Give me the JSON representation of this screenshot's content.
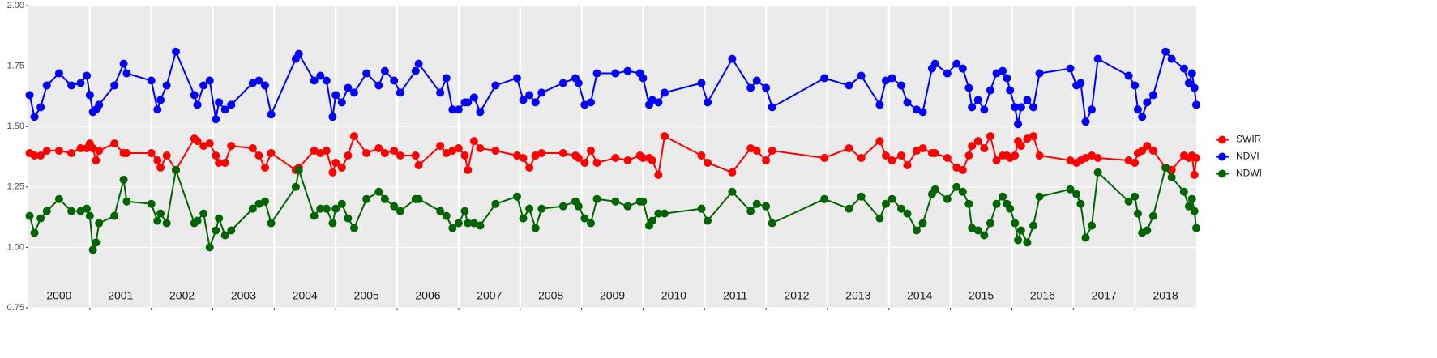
{
  "chart_data": {
    "type": "line",
    "x": [
      2000.02,
      2000.1,
      2000.2,
      2000.3,
      2000.5,
      2000.7,
      2000.85,
      2000.95,
      2001.0,
      2001.05,
      2001.1,
      2001.15,
      2001.4,
      2001.55,
      2001.6,
      2002.0,
      2002.1,
      2002.15,
      2002.25,
      2002.4,
      2002.7,
      2002.75,
      2002.85,
      2002.95,
      2003.05,
      2003.1,
      2003.2,
      2003.3,
      2003.65,
      2003.75,
      2003.85,
      2003.95,
      2004.35,
      2004.4,
      2004.65,
      2004.75,
      2004.85,
      2004.95,
      2005.0,
      2005.1,
      2005.2,
      2005.3,
      2005.5,
      2005.7,
      2005.8,
      2005.95,
      2006.05,
      2006.3,
      2006.35,
      2006.7,
      2006.8,
      2006.9,
      2007.0,
      2007.1,
      2007.15,
      2007.25,
      2007.35,
      2007.6,
      2007.95,
      2008.05,
      2008.15,
      2008.25,
      2008.35,
      2008.7,
      2008.9,
      2008.95,
      2009.05,
      2009.15,
      2009.25,
      2009.55,
      2009.75,
      2009.95,
      2010.0,
      2010.1,
      2010.15,
      2010.25,
      2010.35,
      2010.95,
      2011.05,
      2011.45,
      2011.75,
      2011.85,
      2012.0,
      2012.1,
      2012.95,
      2013.35,
      2013.55,
      2013.85,
      2013.95,
      2014.05,
      2014.2,
      2014.3,
      2014.45,
      2014.55,
      2014.7,
      2014.75,
      2014.95,
      2015.1,
      2015.2,
      2015.3,
      2015.35,
      2015.45,
      2015.55,
      2015.65,
      2015.75,
      2015.85,
      2015.92,
      2015.97,
      2016.05,
      2016.1,
      2016.15,
      2016.25,
      2016.35,
      2016.45,
      2016.95,
      2017.05,
      2017.12,
      2017.2,
      2017.3,
      2017.4,
      2017.9,
      2018.0,
      2018.05,
      2018.12,
      2018.2,
      2018.3,
      2018.5,
      2018.6,
      2018.8,
      2018.88,
      2018.93,
      2018.97,
      2019.0
    ],
    "series": [
      {
        "name": "SWIR",
        "color": "#ff0000",
        "values": [
          1.39,
          1.38,
          1.38,
          1.4,
          1.4,
          1.39,
          1.41,
          1.41,
          1.43,
          1.41,
          1.36,
          1.4,
          1.43,
          1.39,
          1.39,
          1.39,
          1.36,
          1.33,
          1.38,
          1.32,
          1.45,
          1.44,
          1.42,
          1.43,
          1.38,
          1.35,
          1.35,
          1.42,
          1.41,
          1.38,
          1.33,
          1.39,
          1.32,
          1.33,
          1.4,
          1.39,
          1.4,
          1.31,
          1.35,
          1.33,
          1.38,
          1.46,
          1.39,
          1.41,
          1.39,
          1.4,
          1.38,
          1.38,
          1.34,
          1.42,
          1.39,
          1.4,
          1.41,
          1.38,
          1.32,
          1.44,
          1.41,
          1.4,
          1.38,
          1.37,
          1.33,
          1.38,
          1.39,
          1.39,
          1.38,
          1.37,
          1.35,
          1.4,
          1.35,
          1.37,
          1.36,
          1.38,
          1.37,
          1.37,
          1.36,
          1.3,
          1.46,
          1.38,
          1.35,
          1.31,
          1.41,
          1.4,
          1.36,
          1.4,
          1.37,
          1.41,
          1.37,
          1.44,
          1.38,
          1.36,
          1.38,
          1.34,
          1.4,
          1.41,
          1.39,
          1.39,
          1.37,
          1.33,
          1.32,
          1.38,
          1.42,
          1.44,
          1.41,
          1.46,
          1.36,
          1.38,
          1.38,
          1.37,
          1.38,
          1.44,
          1.42,
          1.45,
          1.46,
          1.38,
          1.36,
          1.35,
          1.36,
          1.37,
          1.38,
          1.37,
          1.36,
          1.35,
          1.39,
          1.4,
          1.42,
          1.4,
          1.33,
          1.32,
          1.38,
          1.37,
          1.38,
          1.3,
          1.37
        ]
      },
      {
        "name": "NDVI",
        "color": "#0000ff",
        "values": [
          1.63,
          1.54,
          1.58,
          1.67,
          1.72,
          1.67,
          1.68,
          1.71,
          1.63,
          1.56,
          1.57,
          1.59,
          1.67,
          1.76,
          1.72,
          1.69,
          1.57,
          1.61,
          1.67,
          1.81,
          1.63,
          1.59,
          1.67,
          1.69,
          1.53,
          1.6,
          1.57,
          1.59,
          1.68,
          1.69,
          1.67,
          1.55,
          1.78,
          1.8,
          1.69,
          1.71,
          1.69,
          1.54,
          1.63,
          1.6,
          1.66,
          1.64,
          1.72,
          1.67,
          1.73,
          1.69,
          1.64,
          1.73,
          1.76,
          1.64,
          1.7,
          1.57,
          1.57,
          1.6,
          1.6,
          1.62,
          1.56,
          1.67,
          1.7,
          1.61,
          1.63,
          1.6,
          1.64,
          1.68,
          1.7,
          1.68,
          1.59,
          1.6,
          1.72,
          1.72,
          1.73,
          1.72,
          1.7,
          1.59,
          1.61,
          1.6,
          1.64,
          1.68,
          1.6,
          1.78,
          1.66,
          1.69,
          1.66,
          1.58,
          1.7,
          1.67,
          1.71,
          1.59,
          1.69,
          1.7,
          1.67,
          1.6,
          1.57,
          1.56,
          1.74,
          1.76,
          1.72,
          1.76,
          1.74,
          1.66,
          1.58,
          1.61,
          1.57,
          1.65,
          1.72,
          1.73,
          1.7,
          1.65,
          1.58,
          1.51,
          1.58,
          1.61,
          1.58,
          1.72,
          1.74,
          1.67,
          1.68,
          1.52,
          1.57,
          1.78,
          1.71,
          1.67,
          1.57,
          1.54,
          1.6,
          1.63,
          1.81,
          1.78,
          1.74,
          1.68,
          1.72,
          1.66,
          1.59
        ]
      },
      {
        "name": "NDWI",
        "color": "#006400",
        "values": [
          1.13,
          1.06,
          1.12,
          1.15,
          1.2,
          1.15,
          1.15,
          1.16,
          1.13,
          0.99,
          1.02,
          1.1,
          1.13,
          1.28,
          1.19,
          1.18,
          1.11,
          1.14,
          1.1,
          1.32,
          1.1,
          1.11,
          1.14,
          1.0,
          1.07,
          1.12,
          1.05,
          1.07,
          1.16,
          1.18,
          1.19,
          1.1,
          1.25,
          1.32,
          1.13,
          1.16,
          1.16,
          1.1,
          1.16,
          1.18,
          1.12,
          1.08,
          1.2,
          1.23,
          1.2,
          1.17,
          1.15,
          1.2,
          1.2,
          1.15,
          1.13,
          1.08,
          1.1,
          1.15,
          1.1,
          1.1,
          1.09,
          1.18,
          1.21,
          1.12,
          1.16,
          1.08,
          1.16,
          1.17,
          1.19,
          1.17,
          1.12,
          1.1,
          1.2,
          1.19,
          1.17,
          1.19,
          1.19,
          1.09,
          1.11,
          1.14,
          1.14,
          1.16,
          1.11,
          1.23,
          1.15,
          1.18,
          1.17,
          1.1,
          1.2,
          1.16,
          1.21,
          1.12,
          1.18,
          1.2,
          1.16,
          1.14,
          1.07,
          1.1,
          1.22,
          1.24,
          1.2,
          1.25,
          1.23,
          1.18,
          1.08,
          1.07,
          1.05,
          1.1,
          1.18,
          1.21,
          1.18,
          1.16,
          1.1,
          1.03,
          1.07,
          1.02,
          1.09,
          1.21,
          1.24,
          1.22,
          1.18,
          1.04,
          1.09,
          1.31,
          1.19,
          1.21,
          1.14,
          1.06,
          1.07,
          1.13,
          1.33,
          1.29,
          1.23,
          1.17,
          1.2,
          1.15,
          1.08
        ]
      }
    ],
    "xlim": [
      2000,
      2019
    ],
    "xticks": [
      2001,
      2002,
      2003,
      2004,
      2005,
      2006,
      2007,
      2008,
      2009,
      2010,
      2011,
      2012,
      2013,
      2014,
      2015,
      2016,
      2017,
      2018
    ],
    "year_labels": [
      "2000",
      "2001",
      "2002",
      "2003",
      "2004",
      "2005",
      "2006",
      "2007",
      "2008",
      "2009",
      "2010",
      "2011",
      "2012",
      "2013",
      "2014",
      "2015",
      "2016",
      "2017",
      "2018"
    ],
    "ylim": [
      0.75,
      2.0
    ],
    "yticks": [
      {
        "value": 0.75,
        "label": "0.75"
      },
      {
        "value": 1,
        "label": "1.00"
      },
      {
        "value": 1.25,
        "label": "1.25"
      },
      {
        "value": 1.5,
        "label": "1.50"
      },
      {
        "value": 1.75,
        "label": "1.75"
      },
      {
        "value": 2,
        "label": "2.00"
      }
    ],
    "grid": true,
    "legend": "right"
  }
}
